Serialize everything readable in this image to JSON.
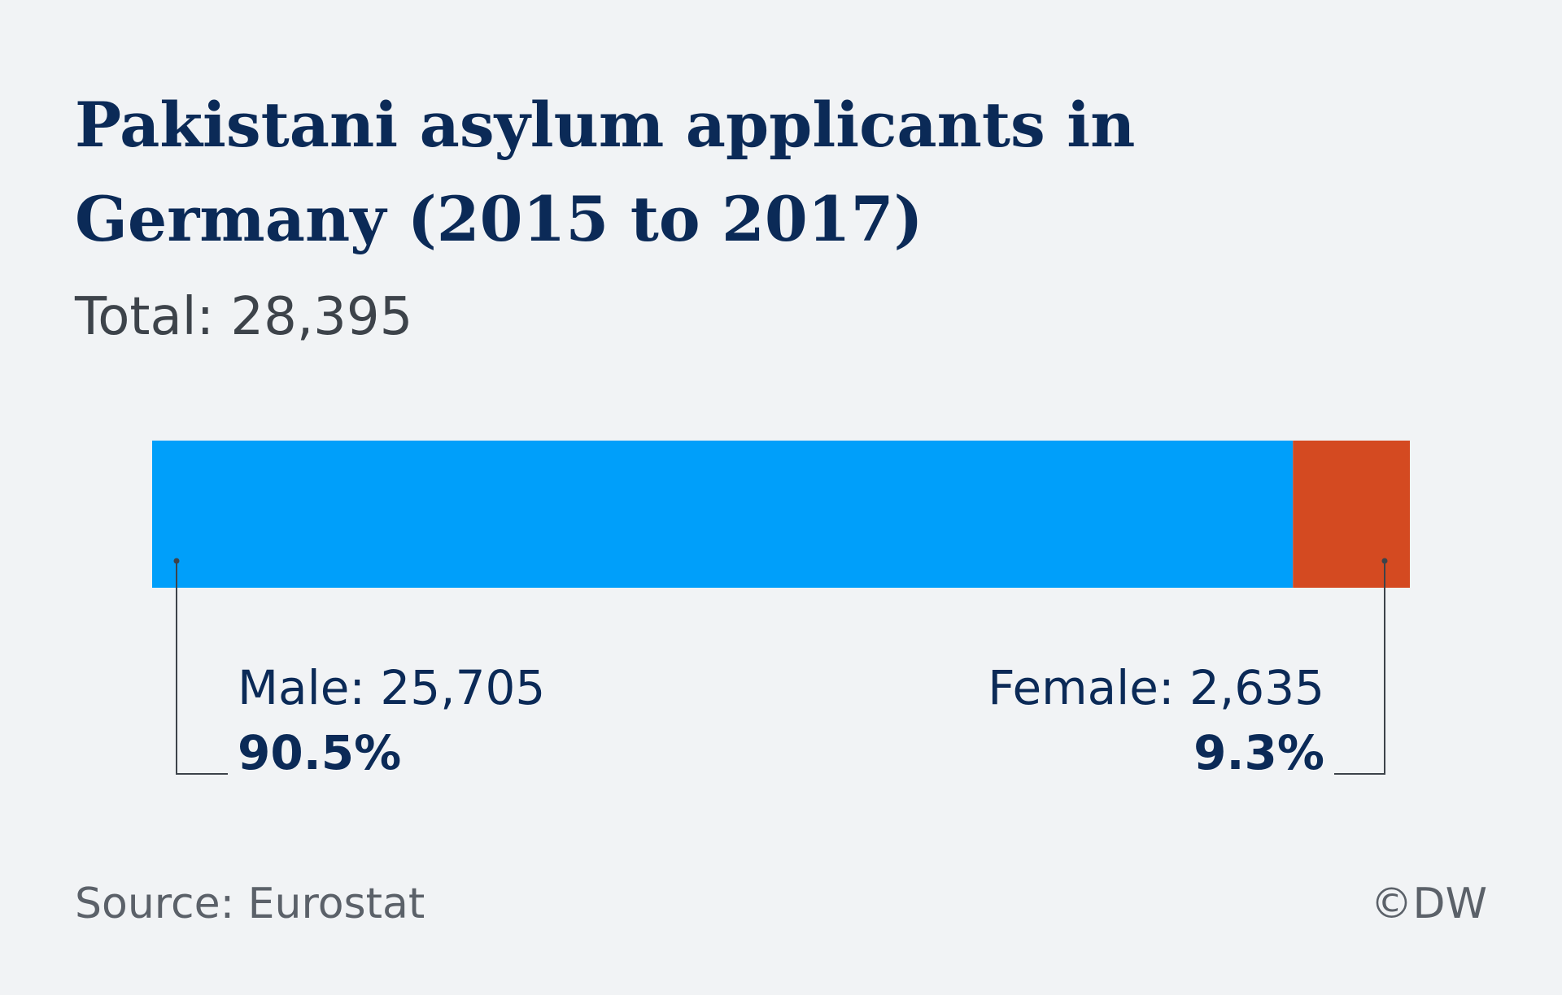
{
  "title": "Pakistani asylum applicants in Germany (2015 to 2017)",
  "subtitle": "Total: 28,395",
  "source": "Source: Eurostat",
  "credit": "©DW",
  "colors": {
    "male": "#009ffa",
    "female": "#d44a21",
    "text_dark": "#0b2a57",
    "text_gray": "#5b6169",
    "background": "#f1f3f5",
    "leader": "#3d434a"
  },
  "chart_data": {
    "type": "bar",
    "orientation": "horizontal-stacked",
    "total": 28395,
    "categories": [
      "Male",
      "Female"
    ],
    "series": [
      {
        "name": "Male",
        "value": 25705,
        "percent": 90.5
      },
      {
        "name": "Female",
        "value": 2635,
        "percent": 9.3
      }
    ],
    "labels": {
      "male_line1": "Male: 25,705",
      "male_line2": "90.5%",
      "female_line1": "Female: 2,635",
      "female_line2": "9.3%"
    }
  }
}
